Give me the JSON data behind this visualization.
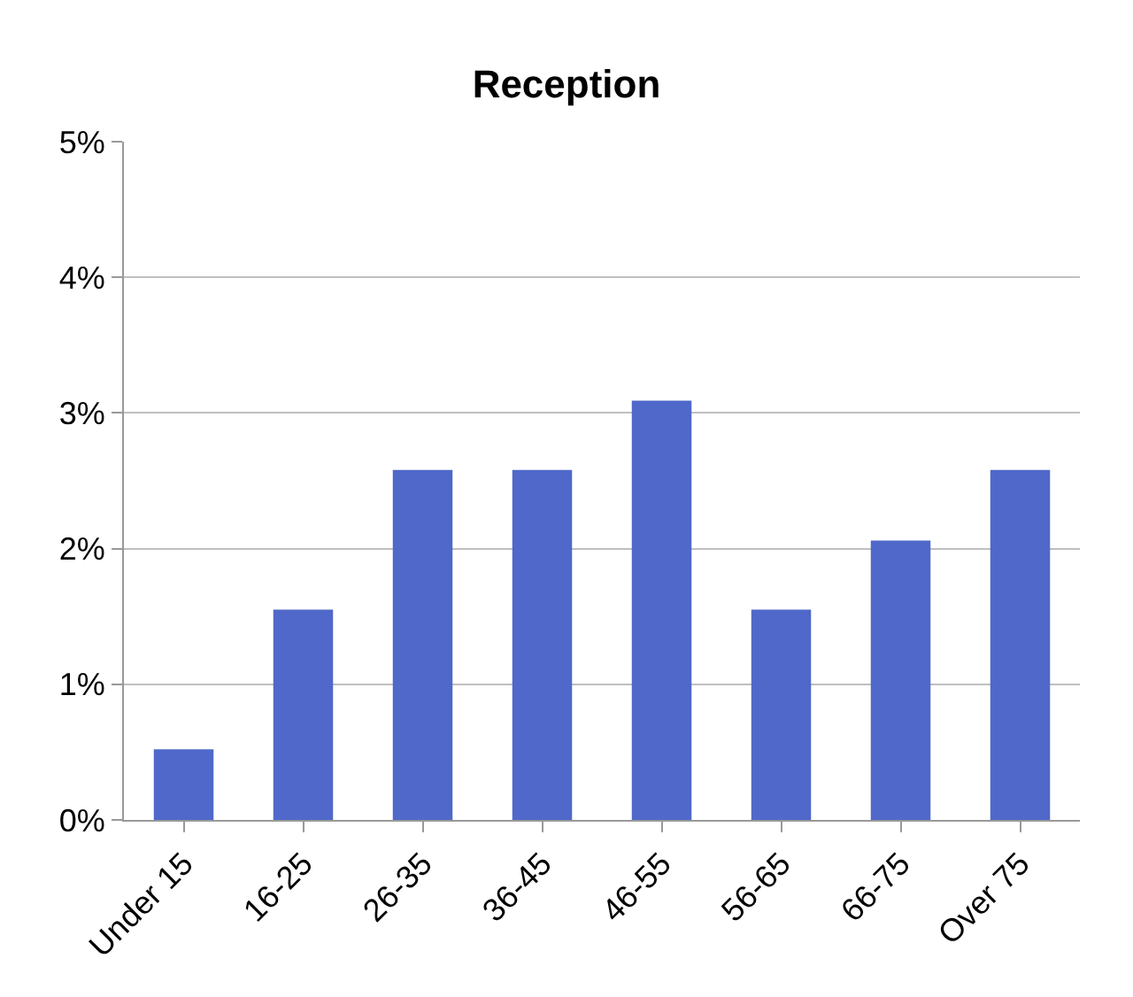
{
  "chart_data": {
    "type": "bar",
    "title": "Reception",
    "categories": [
      "Under 15",
      "16-25",
      "26-35",
      "36-45",
      "46-55",
      "56-65",
      "66-75",
      "Over 75"
    ],
    "values": [
      0.52,
      1.55,
      2.58,
      2.58,
      3.09,
      1.55,
      2.06,
      2.58
    ],
    "color": "#4f68c9",
    "ylim": [
      0,
      5
    ],
    "yticks": [
      {
        "value": 0,
        "label": "0%"
      },
      {
        "value": 1,
        "label": "1%"
      },
      {
        "value": 2,
        "label": "2%"
      },
      {
        "value": 3,
        "label": "3%"
      },
      {
        "value": 4,
        "label": "4%"
      },
      {
        "value": 5,
        "label": "5%"
      }
    ],
    "grid": "y"
  }
}
